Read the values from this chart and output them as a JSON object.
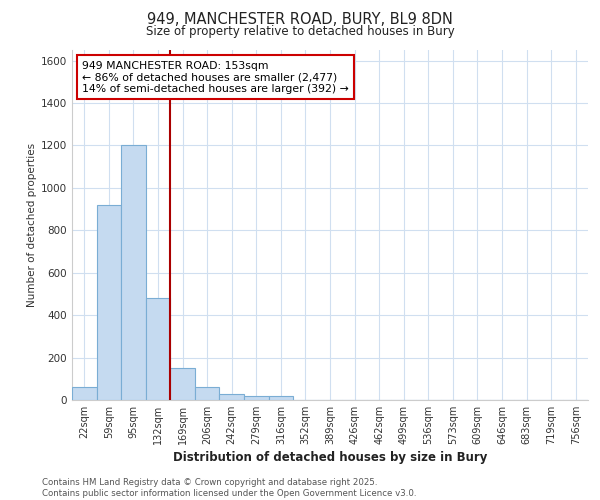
{
  "title_line1": "949, MANCHESTER ROAD, BURY, BL9 8DN",
  "title_line2": "Size of property relative to detached houses in Bury",
  "xlabel": "Distribution of detached houses by size in Bury",
  "ylabel": "Number of detached properties",
  "categories": [
    "22sqm",
    "59sqm",
    "95sqm",
    "132sqm",
    "169sqm",
    "206sqm",
    "242sqm",
    "279sqm",
    "316sqm",
    "352sqm",
    "389sqm",
    "426sqm",
    "462sqm",
    "499sqm",
    "536sqm",
    "573sqm",
    "609sqm",
    "646sqm",
    "683sqm",
    "719sqm",
    "756sqm"
  ],
  "values": [
    60,
    920,
    1200,
    480,
    150,
    60,
    30,
    20,
    20,
    0,
    0,
    0,
    0,
    0,
    0,
    0,
    0,
    0,
    0,
    0,
    0
  ],
  "bar_color": "#c5daf0",
  "bar_edge_color": "#7aadd4",
  "grid_color": "#d0dff0",
  "background_color": "#ffffff",
  "vline_color": "#aa0000",
  "annotation_text": "949 MANCHESTER ROAD: 153sqm\n← 86% of detached houses are smaller (2,477)\n14% of semi-detached houses are larger (392) →",
  "annotation_box_color": "#ffffff",
  "annotation_box_edge_color": "#cc0000",
  "ylim": [
    0,
    1650
  ],
  "yticks": [
    0,
    200,
    400,
    600,
    800,
    1000,
    1200,
    1400,
    1600
  ],
  "footer_line1": "Contains HM Land Registry data © Crown copyright and database right 2025.",
  "footer_line2": "Contains public sector information licensed under the Open Government Licence v3.0."
}
